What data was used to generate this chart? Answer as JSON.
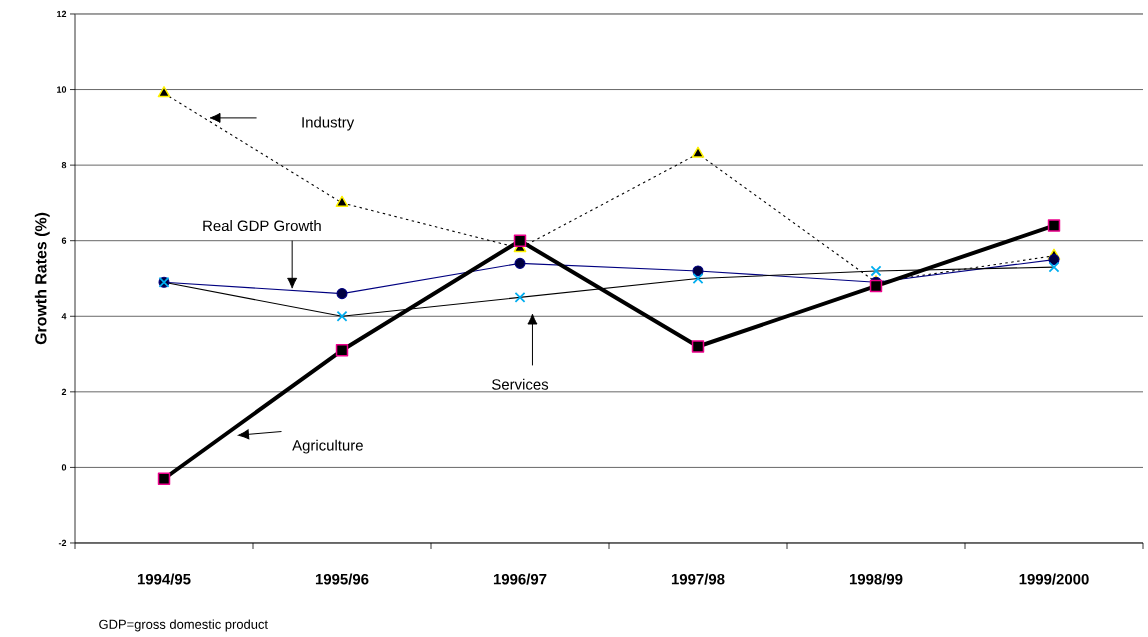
{
  "chart_data": {
    "type": "line",
    "ylabel": "Growth Rates (%)",
    "categories": [
      "1994/95",
      "1995/96",
      "1996/97",
      "1997/98",
      "1998/99",
      "1999/2000"
    ],
    "series": [
      {
        "name": "Industry",
        "color": "#000000",
        "marker": "triangle",
        "line_style": "dotted",
        "values": [
          9.9,
          7.0,
          5.8,
          8.3,
          4.9,
          5.6
        ]
      },
      {
        "name": "Real GDP Growth",
        "color": "#000080",
        "marker": "circle",
        "line_style": "solid",
        "values": [
          4.9,
          4.6,
          5.4,
          5.2,
          4.9,
          5.5
        ]
      },
      {
        "name": "Services",
        "color": "#000000",
        "marker": "cross",
        "line_style": "solid",
        "values": [
          4.9,
          4.0,
          4.5,
          5.0,
          5.2,
          5.3
        ]
      },
      {
        "name": "Agriculture",
        "color": "#000000",
        "marker": "square",
        "line_style": "solid",
        "values": [
          -0.3,
          3.1,
          6.0,
          3.2,
          4.8,
          6.4
        ]
      }
    ],
    "ylim": [
      -2,
      12
    ],
    "yticks": [
      -2,
      0,
      2,
      4,
      6,
      8,
      10,
      12
    ],
    "grid": "y",
    "annotations": [
      "GDP=gross domestic product"
    ]
  }
}
